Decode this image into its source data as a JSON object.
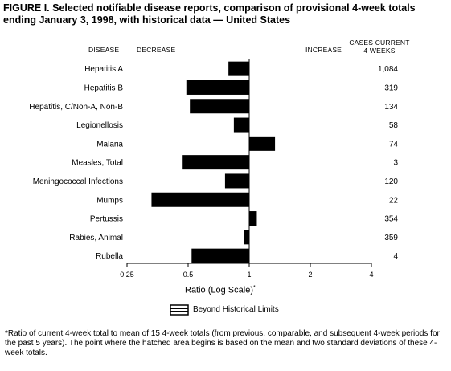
{
  "header": {
    "title_line1": "FIGURE I. Selected notifiable disease reports, comparison of provisional 4-week totals",
    "title_line2": "ending January 3, 1998, with historical data — United States",
    "col_disease": "DISEASE",
    "col_decrease": "DECREASE",
    "col_increase": "INCREASE",
    "col_cases_line1": "CASES CURRENT",
    "col_cases_line2": "4 WEEKS"
  },
  "chart_data": {
    "type": "bar",
    "orientation": "horizontal",
    "scale": "log",
    "baseline": 1,
    "categories": [
      "Hepatitis A",
      "Hepatitis B",
      "Hepatitis, C/Non-A, Non-B",
      "Legionellosis",
      "Malaria",
      "Measles, Total",
      "Meningococcal Infections",
      "Mumps",
      "Pertussis",
      "Rabies, Animal",
      "Rubella"
    ],
    "values": [
      0.79,
      0.49,
      0.51,
      0.84,
      1.34,
      0.47,
      0.76,
      0.33,
      1.09,
      0.94,
      0.52
    ],
    "cases": [
      "1,084",
      "319",
      "134",
      "58",
      "74",
      "3",
      "120",
      "22",
      "354",
      "359",
      "4"
    ],
    "xticks": [
      "0.25",
      "0.5",
      "1",
      "2",
      "4"
    ],
    "xtick_values": [
      0.25,
      0.5,
      1,
      2,
      4
    ],
    "xlim": [
      0.25,
      4
    ],
    "xlabel": "Ratio (Log Scale)",
    "xlabel_mark": "*",
    "legend": "Beyond Historical Limits",
    "bar_color": "#000000"
  },
  "footnote": "*Ratio of current 4-week total to mean of 15 4-week totals (from previous, comparable, and subsequent 4-week periods for the past 5 years). The point where the hatched area begins is based on the mean and two standard deviations of these 4-week totals."
}
